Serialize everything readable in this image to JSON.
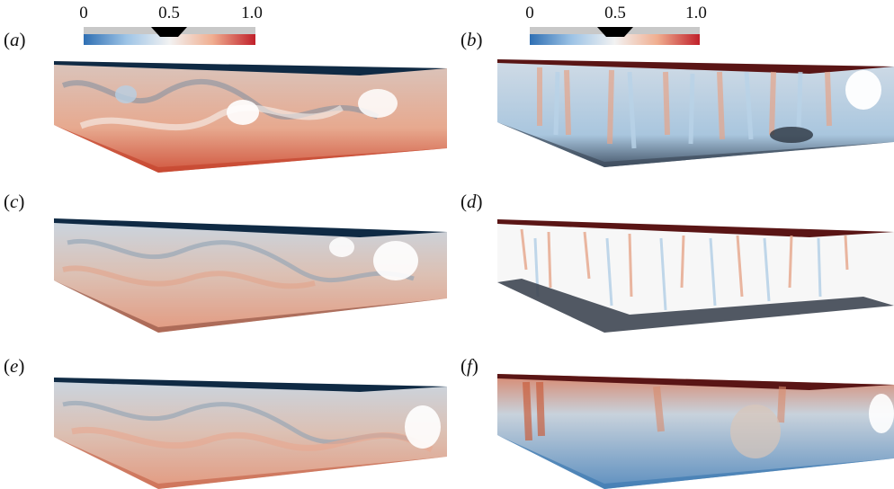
{
  "colorbar": {
    "ticks": [
      "0",
      "0.5",
      "1.0"
    ],
    "colors": {
      "low": "#2f6fb3",
      "mid": "#f2f2f2",
      "high": "#c0202a"
    }
  },
  "panels": [
    {
      "id": "a",
      "label": "a"
    },
    {
      "id": "b",
      "label": "b"
    },
    {
      "id": "c",
      "label": "c"
    },
    {
      "id": "d",
      "label": "d"
    },
    {
      "id": "e",
      "label": "e"
    },
    {
      "id": "f",
      "label": "f"
    }
  ]
}
